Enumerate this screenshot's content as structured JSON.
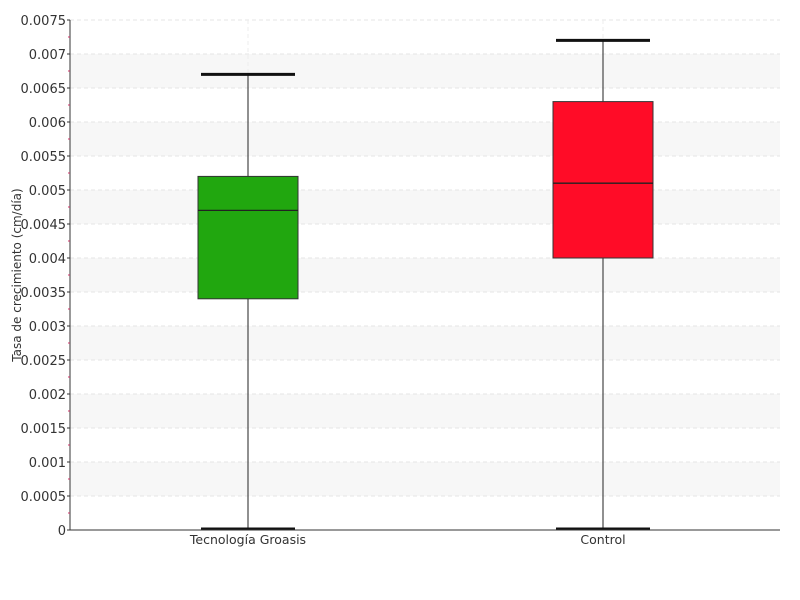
{
  "chart_data": {
    "type": "box",
    "title": "",
    "xlabel": "",
    "ylabel": "Tasa de crecimiento (cm/día)",
    "ylim": [
      0,
      0.0075
    ],
    "ytick_step": 0.0005,
    "yticks": [
      "0",
      "0.0005",
      "0.001",
      "0.0015",
      "0.002",
      "0.0025",
      "0.003",
      "0.0035",
      "0.004",
      "0.0045",
      "0.005",
      "0.0055",
      "0.006",
      "0.0065",
      "0.007",
      "0.0075"
    ],
    "grid": "horizontal, dashed, alternating bands",
    "legend": "none",
    "categories": [
      "Tecnología Groasis",
      "Control"
    ],
    "boxes": [
      {
        "category": "Tecnología Groasis",
        "min": 0,
        "q1": 0.0034,
        "median": 0.0047,
        "q3": 0.0052,
        "max": 0.0067,
        "color": "#21a70f"
      },
      {
        "category": "Control",
        "min": 0,
        "q1": 0.004,
        "median": 0.0051,
        "q3": 0.0063,
        "max": 0.0072,
        "color": "#ff0c27"
      }
    ]
  }
}
